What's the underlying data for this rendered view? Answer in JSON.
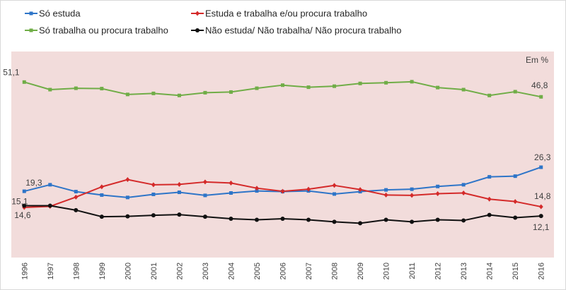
{
  "chart_data": {
    "type": "line",
    "title": "",
    "unit_label": "Em %",
    "xlabel": "",
    "ylabel": "",
    "ylim": [
      0,
      60
    ],
    "grid": false,
    "legend_position": "top",
    "background": "#f2dcdb",
    "categories": [
      "1996",
      "1997",
      "1998",
      "1999",
      "2000",
      "2001",
      "2002",
      "2003",
      "2004",
      "2005",
      "2006",
      "2007",
      "2008",
      "2009",
      "2010",
      "2011",
      "2012",
      "2013",
      "2014",
      "2015",
      "2016"
    ],
    "series": [
      {
        "name": "Só estuda",
        "color": "#2e75c8",
        "marker": "square",
        "values": [
          19.3,
          21.2,
          19.2,
          18.2,
          17.5,
          18.4,
          19.0,
          18.1,
          18.8,
          19.4,
          19.2,
          19.4,
          18.5,
          19.2,
          19.7,
          19.9,
          20.7,
          21.2,
          23.5,
          23.7,
          26.3
        ],
        "labels": {
          "first": "19,3",
          "last": "26,3"
        }
      },
      {
        "name": "Estuda e trabalha e/ou procura trabalho",
        "color": "#d42a2a",
        "marker": "diamond",
        "values": [
          14.6,
          14.9,
          17.6,
          20.6,
          22.7,
          21.2,
          21.3,
          22.0,
          21.7,
          20.2,
          19.3,
          19.9,
          21.0,
          19.8,
          18.2,
          18.1,
          18.6,
          18.8,
          17.0,
          16.3,
          14.8
        ],
        "labels": {
          "first": "14,6",
          "last": "14,8"
        }
      },
      {
        "name": "Só trabalha ou procura trabalho",
        "color": "#70ad47",
        "marker": "square",
        "values": [
          51.1,
          48.9,
          49.3,
          49.2,
          47.5,
          47.8,
          47.2,
          48.0,
          48.2,
          49.3,
          50.2,
          49.6,
          49.9,
          50.7,
          50.9,
          51.2,
          49.5,
          48.9,
          47.2,
          48.3,
          46.8
        ],
        "labels": {
          "first": "51,1",
          "last": "46,8"
        }
      },
      {
        "name": "Não estuda/ Não trabalha/ Não procura trabalho",
        "color": "#111111",
        "marker": "circle",
        "values": [
          15.1,
          15.1,
          13.8,
          11.9,
          12.0,
          12.3,
          12.5,
          11.9,
          11.3,
          11.0,
          11.3,
          11.0,
          10.4,
          10.0,
          11.0,
          10.4,
          11.0,
          10.8,
          12.4,
          11.6,
          12.1
        ],
        "labels": {
          "first": "15,1",
          "last": "12,1"
        }
      }
    ]
  }
}
